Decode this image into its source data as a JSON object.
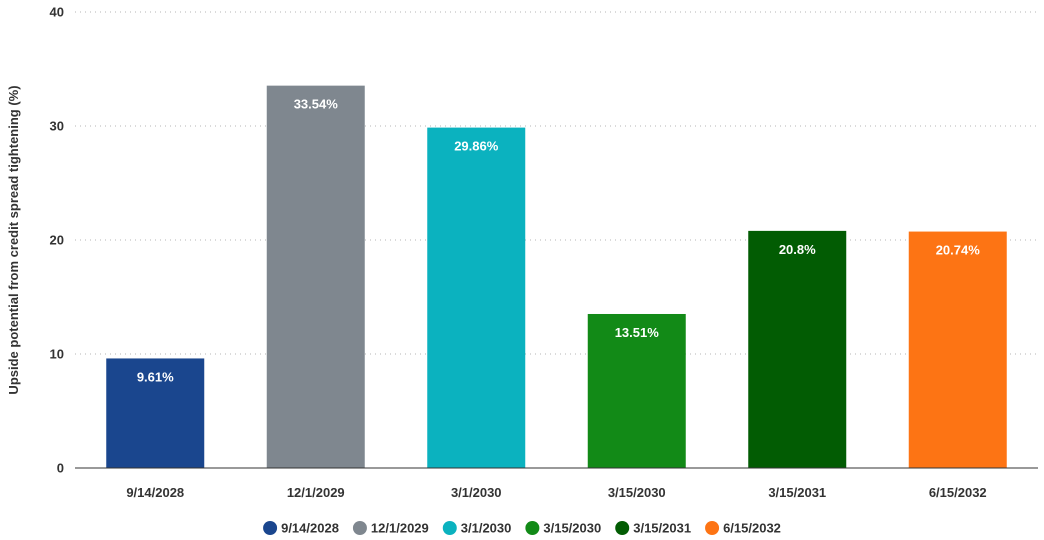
{
  "chart_data": {
    "type": "bar",
    "title": "",
    "xlabel": "",
    "ylabel": "Upside potential from credit spread tightening (%)",
    "ylim": [
      0,
      40
    ],
    "yticks": [
      0,
      10,
      20,
      30,
      40
    ],
    "grid": true,
    "legend_position": "bottom",
    "categories": [
      "9/14/2028",
      "12/1/2029",
      "3/1/2030",
      "3/15/2030",
      "3/15/2031",
      "6/15/2032"
    ],
    "values": [
      9.61,
      33.54,
      29.86,
      13.51,
      20.8,
      20.74
    ],
    "data_labels": [
      "9.61%",
      "33.54%",
      "29.86%",
      "13.51%",
      "20.8%",
      "20.74%"
    ],
    "colors": [
      "#1a468e",
      "#7f878f",
      "#0bb2bf",
      "#128a17",
      "#025c03",
      "#fd7414"
    ]
  }
}
